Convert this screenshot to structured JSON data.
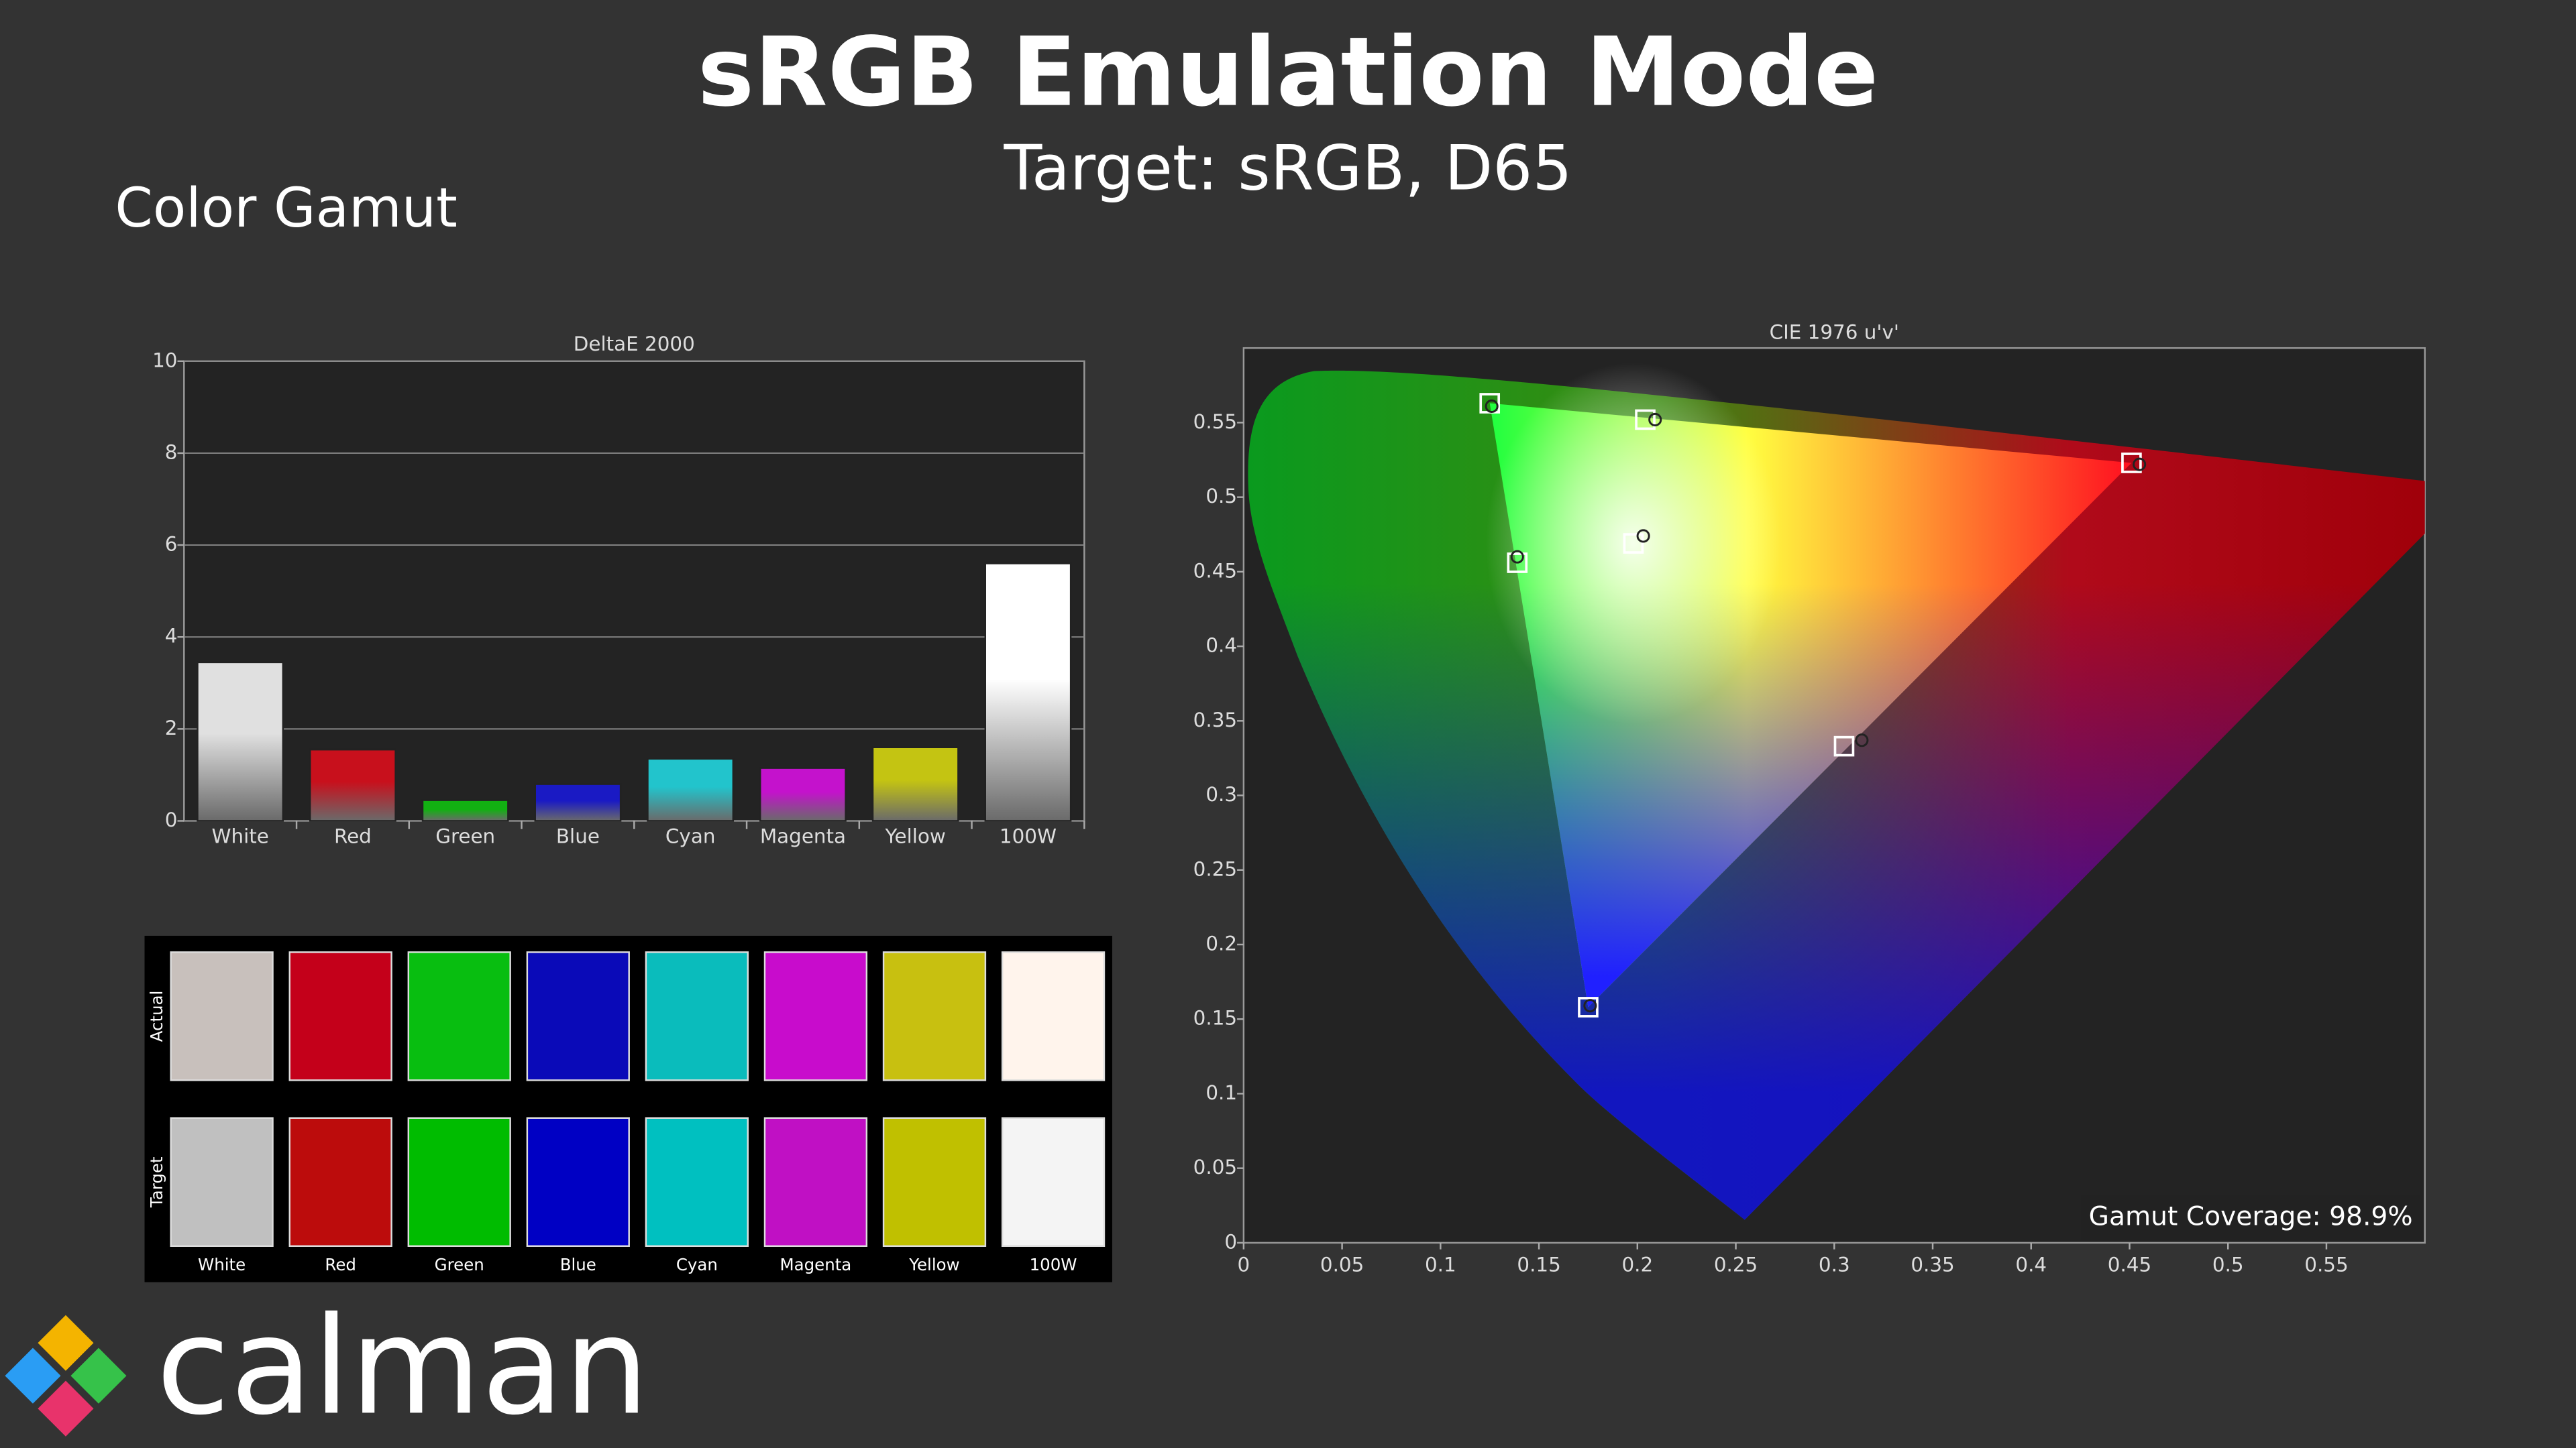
{
  "header": {
    "title": "sRGB Emulation Mode",
    "subtitle": "Target: sRGB, D65",
    "section": "Color Gamut",
    "logo": "calman"
  },
  "chart_data": [
    {
      "type": "bar",
      "title": "DeltaE 2000",
      "categories": [
        "White",
        "Red",
        "Green",
        "Blue",
        "Cyan",
        "Magenta",
        "Yellow",
        "100W"
      ],
      "values": [
        3.45,
        1.55,
        0.45,
        0.8,
        1.35,
        1.15,
        1.6,
        5.6
      ],
      "colors": [
        "#e0e0e0",
        "#c8101c",
        "#12b012",
        "#1a1ac4",
        "#22c4cc",
        "#c412cc",
        "#c4c412",
        "#ffffff"
      ],
      "ylim": [
        0,
        10
      ],
      "yticks": [
        0,
        2,
        4,
        6,
        8,
        10
      ],
      "grid": true
    },
    {
      "type": "scatter",
      "title": "CIE 1976 u'v'",
      "xlim": [
        0,
        0.6
      ],
      "ylim": [
        0,
        0.6
      ],
      "xticks": [
        0,
        0.05,
        0.1,
        0.15,
        0.2,
        0.25,
        0.3,
        0.35,
        0.4,
        0.45,
        0.5,
        0.55
      ],
      "yticks": [
        0,
        0.05,
        0.1,
        0.15,
        0.2,
        0.25,
        0.3,
        0.35,
        0.4,
        0.45,
        0.5,
        0.55
      ],
      "series": [
        {
          "marker": "square",
          "color": "#ffffff",
          "x": [
            0.451,
            0.125,
            0.175,
            0.139,
            0.305,
            0.204,
            0.198
          ],
          "y": [
            0.523,
            0.563,
            0.158,
            0.456,
            0.333,
            0.552,
            0.469
          ]
        },
        {
          "marker": "circle",
          "color": "#222222",
          "x": [
            0.455,
            0.126,
            0.176,
            0.139,
            0.314,
            0.209,
            0.203
          ],
          "y": [
            0.522,
            0.561,
            0.159,
            0.46,
            0.337,
            0.552,
            0.474
          ]
        }
      ],
      "annotation": "Gamut Coverage:  98.9%"
    }
  ],
  "swatches": {
    "labels": [
      "White",
      "Red",
      "Green",
      "Blue",
      "Cyan",
      "Magenta",
      "Yellow",
      "100W"
    ],
    "rows": [
      {
        "label": "Actual",
        "colors": [
          "#c8c0bc",
          "#c4001a",
          "#08be10",
          "#0a0ab8",
          "#0abcbc",
          "#c80ccc",
          "#c8c010",
          "#fff4ec"
        ]
      },
      {
        "label": "Target",
        "colors": [
          "#c0c0c0",
          "#bc0c0c",
          "#00bc00",
          "#0000c4",
          "#00c0c0",
          "#c010c4",
          "#c0c000",
          "#f4f4f4"
        ]
      }
    ]
  }
}
